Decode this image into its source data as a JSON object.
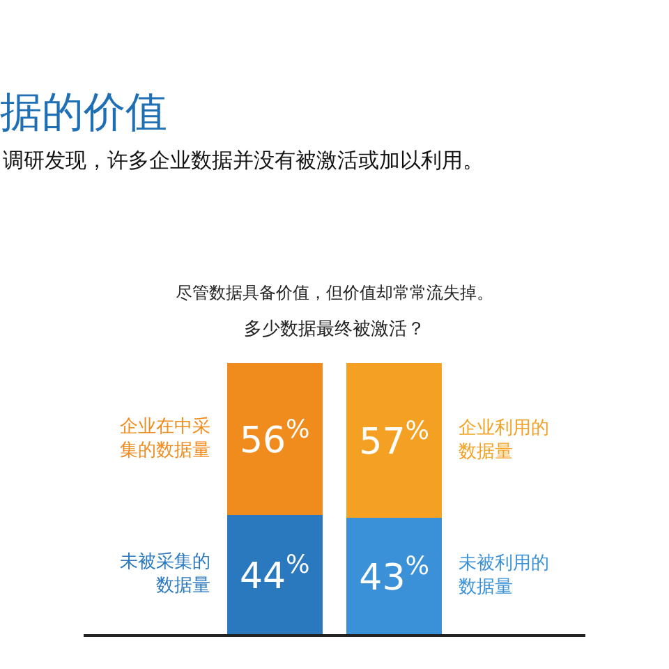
{
  "chart_data": {
    "type": "bar",
    "stacked": true,
    "title": "据的价值",
    "subtitle": "调研发现，许多企业数据并没有被激活或加以利用。",
    "annotations": [
      "尽管数据具备价值，但价值却常常流失掉。",
      "多少数据最终被激活？"
    ],
    "categories": [
      null,
      null
    ],
    "series": [
      {
        "name": "未被采集的数据量",
        "color": "#2a78be",
        "values": [
          44,
          null
        ],
        "value_labels": [
          "44$^{%}$",
          null
        ]
      },
      {
        "name": "企业在中采集的数据量",
        "color": "#f08c1e",
        "values": [
          56,
          null
        ],
        "value_labels": [
          "56$^{%}$",
          null
        ]
      },
      {
        "name": "未被利用的数据量",
        "color": "#3b91d8",
        "values": [
          null,
          43
        ],
        "value_labels": [
          null,
          "43$^{%}$"
        ]
      },
      {
        "name": "企业利用的数据量",
        "color": "#f4a123",
        "values": [
          null,
          57
        ],
        "value_labels": [
          null,
          "57$^{%}$"
        ]
      }
    ]
  }
}
